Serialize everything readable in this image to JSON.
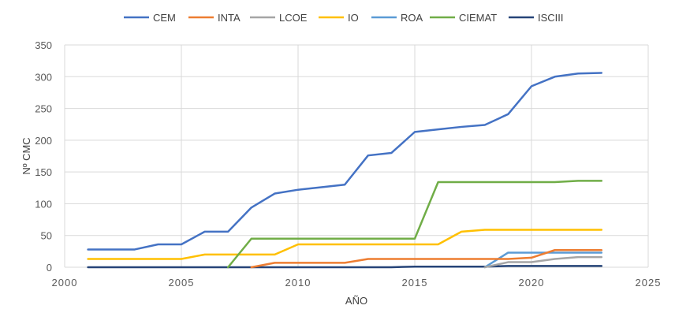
{
  "chart_data": {
    "type": "line",
    "title": "",
    "xlabel": "AÑO",
    "ylabel": "Nº CMC",
    "xlim": [
      2000,
      2025
    ],
    "ylim": [
      0,
      350
    ],
    "x_ticks": [
      2000,
      2005,
      2010,
      2015,
      2020,
      2025
    ],
    "y_ticks": [
      0,
      50,
      100,
      150,
      200,
      250,
      300,
      350
    ],
    "grid": true,
    "legend_position": "top",
    "series": [
      {
        "name": "CEM",
        "color": "#4472c4",
        "points": [
          [
            2001,
            28
          ],
          [
            2002,
            28
          ],
          [
            2003,
            28
          ],
          [
            2004,
            36
          ],
          [
            2005,
            36
          ],
          [
            2006,
            56
          ],
          [
            2007,
            56
          ],
          [
            2008,
            94
          ],
          [
            2009,
            116
          ],
          [
            2010,
            122
          ],
          [
            2011,
            126
          ],
          [
            2012,
            130
          ],
          [
            2013,
            176
          ],
          [
            2014,
            180
          ],
          [
            2015,
            213
          ],
          [
            2016,
            217
          ],
          [
            2017,
            221
          ],
          [
            2018,
            224
          ],
          [
            2019,
            241
          ],
          [
            2020,
            285
          ],
          [
            2021,
            300
          ],
          [
            2022,
            305
          ],
          [
            2023,
            306
          ]
        ]
      },
      {
        "name": "INTA",
        "color": "#ed7d31",
        "points": [
          [
            2008,
            0
          ],
          [
            2009,
            7
          ],
          [
            2010,
            7
          ],
          [
            2011,
            7
          ],
          [
            2012,
            7
          ],
          [
            2013,
            13
          ],
          [
            2014,
            13
          ],
          [
            2015,
            13
          ],
          [
            2016,
            13
          ],
          [
            2017,
            13
          ],
          [
            2018,
            13
          ],
          [
            2019,
            13
          ],
          [
            2020,
            15
          ],
          [
            2021,
            27
          ],
          [
            2022,
            27
          ],
          [
            2023,
            27
          ]
        ]
      },
      {
        "name": "LCOE",
        "color": "#a5a5a5",
        "points": [
          [
            2018,
            0
          ],
          [
            2019,
            8
          ],
          [
            2020,
            8
          ],
          [
            2021,
            13
          ],
          [
            2022,
            16
          ],
          [
            2023,
            16
          ]
        ]
      },
      {
        "name": "IO",
        "color": "#ffc000",
        "points": [
          [
            2001,
            13
          ],
          [
            2002,
            13
          ],
          [
            2003,
            13
          ],
          [
            2004,
            13
          ],
          [
            2005,
            13
          ],
          [
            2006,
            20
          ],
          [
            2007,
            20
          ],
          [
            2008,
            20
          ],
          [
            2009,
            20
          ],
          [
            2010,
            36
          ],
          [
            2011,
            36
          ],
          [
            2012,
            36
          ],
          [
            2013,
            36
          ],
          [
            2014,
            36
          ],
          [
            2015,
            36
          ],
          [
            2016,
            36
          ],
          [
            2017,
            56
          ],
          [
            2018,
            59
          ],
          [
            2019,
            59
          ],
          [
            2020,
            59
          ],
          [
            2021,
            59
          ],
          [
            2022,
            59
          ],
          [
            2023,
            59
          ]
        ]
      },
      {
        "name": "ROA",
        "color": "#5b9bd5",
        "points": [
          [
            2018,
            0
          ],
          [
            2019,
            23
          ],
          [
            2020,
            23
          ],
          [
            2021,
            23
          ],
          [
            2022,
            23
          ],
          [
            2023,
            23
          ]
        ]
      },
      {
        "name": "CIEMAT",
        "color": "#70ad47",
        "points": [
          [
            2007,
            0
          ],
          [
            2008,
            45
          ],
          [
            2009,
            45
          ],
          [
            2010,
            45
          ],
          [
            2011,
            45
          ],
          [
            2012,
            45
          ],
          [
            2013,
            45
          ],
          [
            2014,
            45
          ],
          [
            2015,
            45
          ],
          [
            2016,
            134
          ],
          [
            2017,
            134
          ],
          [
            2018,
            134
          ],
          [
            2019,
            134
          ],
          [
            2020,
            134
          ],
          [
            2021,
            134
          ],
          [
            2022,
            136
          ],
          [
            2023,
            136
          ]
        ]
      },
      {
        "name": "ISCIII",
        "color": "#264478",
        "points": [
          [
            2001,
            0
          ],
          [
            2005,
            0
          ],
          [
            2010,
            0
          ],
          [
            2014,
            0
          ],
          [
            2015,
            1
          ],
          [
            2018,
            1
          ],
          [
            2019,
            2
          ],
          [
            2020,
            2
          ],
          [
            2021,
            2
          ],
          [
            2022,
            2
          ],
          [
            2023,
            2
          ]
        ]
      }
    ]
  }
}
